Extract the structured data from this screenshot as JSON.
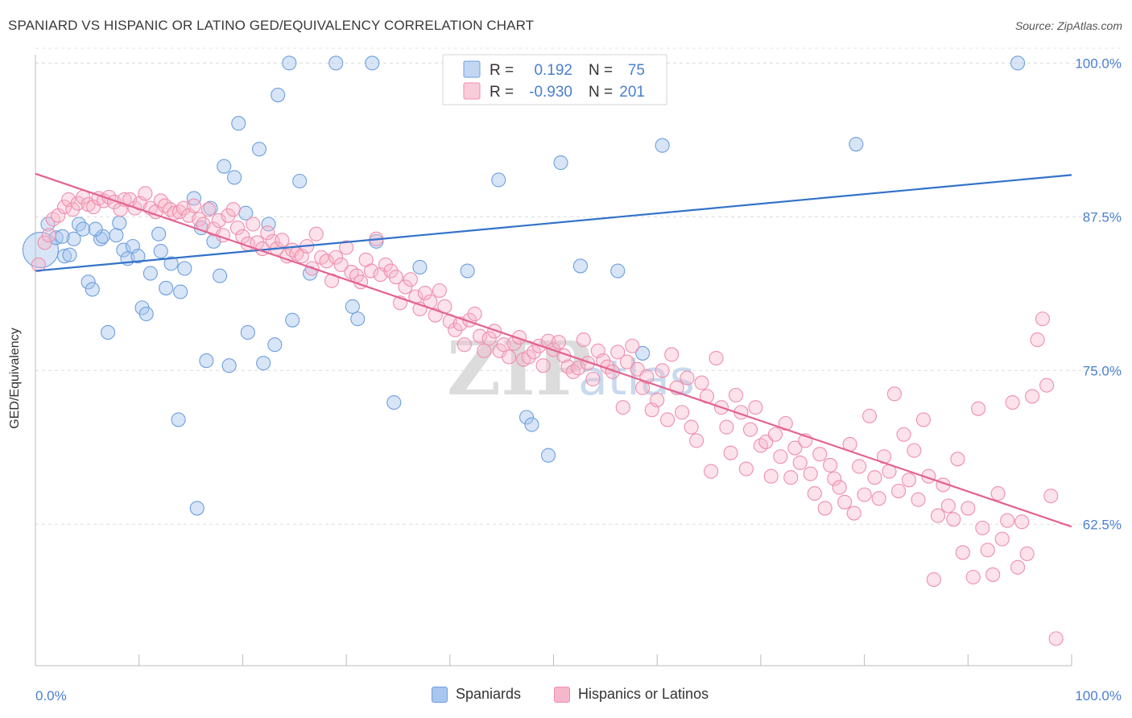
{
  "title": "SPANIARD VS HISPANIC OR LATINO GED/EQUIVALENCY CORRELATION CHART",
  "source": "Source: ZipAtlas.com",
  "colors": {
    "blue_fill": "#a9c6ee",
    "blue_stroke": "#6d9fdd",
    "blue_line": "#3272c9",
    "pink_fill": "#f7b7cb",
    "pink_stroke": "#ee8eae",
    "pink_line": "#e4628f",
    "tick_label": "#4a7fd0"
  },
  "stats_legend": {
    "r_label": "R =",
    "n_label": "N =",
    "rows": [
      {
        "series": "Spaniards",
        "r": "0.192",
        "n": "75"
      },
      {
        "series": "Hispanics or Latinos",
        "r": "-0.930",
        "n": "201"
      }
    ]
  },
  "bottom_legend": [
    "Spaniards",
    "Hispanics or Latinos"
  ],
  "watermark": "ZIPatlas",
  "chart_data": {
    "type": "scatter",
    "title": "SPANIARD VS HISPANIC OR LATINO GED/EQUIVALENCY CORRELATION CHART",
    "xlabel": "",
    "ylabel": "GED/Equivalency",
    "xlim": [
      0,
      100
    ],
    "ylim": [
      51,
      101.2
    ],
    "x_tick_labels": [
      "0.0%",
      "100.0%"
    ],
    "y_ticks": [
      62.5,
      75.0,
      87.5,
      100.0
    ],
    "y_tick_labels": [
      "62.5%",
      "75.0%",
      "87.5%",
      "100.0%"
    ],
    "grid": true,
    "legend_position": "top-center",
    "series": [
      {
        "name": "Spaniards",
        "trend": {
          "x": [
            0,
            100
          ],
          "y": [
            83.1,
            90.9
          ]
        },
        "points": [
          [
            0.5,
            84.8
          ],
          [
            1.2,
            86.9
          ],
          [
            2,
            85.8
          ],
          [
            2.8,
            84.3
          ],
          [
            3.3,
            84.4
          ],
          [
            3.7,
            85.7
          ],
          [
            4.2,
            86.9
          ],
          [
            4.6,
            86.5
          ],
          [
            5.1,
            82.2
          ],
          [
            5.5,
            81.6
          ],
          [
            6.3,
            85.7
          ],
          [
            6.5,
            85.9
          ],
          [
            7,
            78.1
          ],
          [
            7.8,
            86.0
          ],
          [
            8.1,
            87.0
          ],
          [
            8.5,
            84.8
          ],
          [
            8.9,
            84.1
          ],
          [
            9.4,
            85.1
          ],
          [
            9.9,
            84.3
          ],
          [
            10.3,
            80.1
          ],
          [
            10.7,
            79.6
          ],
          [
            11.1,
            82.9
          ],
          [
            11.9,
            86.1
          ],
          [
            12.1,
            84.7
          ],
          [
            12.6,
            81.7
          ],
          [
            13.1,
            83.7
          ],
          [
            13.8,
            71.0
          ],
          [
            14,
            81.4
          ],
          [
            14.4,
            83.3
          ],
          [
            15.3,
            89.0
          ],
          [
            15.6,
            63.8
          ],
          [
            16,
            86.6
          ],
          [
            16.5,
            75.8
          ],
          [
            16.9,
            88.2
          ],
          [
            17.2,
            85.5
          ],
          [
            17.8,
            82.7
          ],
          [
            18.2,
            91.6
          ],
          [
            18.7,
            75.4
          ],
          [
            19.2,
            90.7
          ],
          [
            19.6,
            95.1
          ],
          [
            20.3,
            87.8
          ],
          [
            20.5,
            78.1
          ],
          [
            21.6,
            93.0
          ],
          [
            22,
            75.6
          ],
          [
            22.5,
            86.9
          ],
          [
            23.1,
            77.1
          ],
          [
            23.4,
            97.4
          ],
          [
            24.5,
            100.0
          ],
          [
            24.8,
            79.1
          ],
          [
            25.5,
            90.4
          ],
          [
            26.5,
            82.9
          ],
          [
            29,
            100.0
          ],
          [
            30.6,
            80.2
          ],
          [
            31.1,
            79.2
          ],
          [
            32.5,
            100.0
          ],
          [
            32.9,
            85.5
          ],
          [
            34.6,
            72.4
          ],
          [
            37.1,
            83.4
          ],
          [
            40.5,
            100.0
          ],
          [
            41.7,
            83.1
          ],
          [
            44.1,
            99.0
          ],
          [
            44.7,
            90.5
          ],
          [
            47.4,
            71.2
          ],
          [
            47.9,
            70.6
          ],
          [
            49.5,
            68.1
          ],
          [
            50.4,
            100.0
          ],
          [
            50.7,
            91.9
          ],
          [
            52.6,
            83.5
          ],
          [
            56.2,
            83.1
          ],
          [
            58.6,
            76.4
          ],
          [
            60.5,
            93.3
          ],
          [
            79.2,
            93.4
          ],
          [
            94.8,
            100.0
          ],
          [
            5.8,
            86.5
          ],
          [
            2.6,
            85.9
          ]
        ]
      },
      {
        "name": "Hispanics or Latinos",
        "trend": {
          "x": [
            0,
            100
          ],
          "y": [
            91.0,
            62.3
          ]
        },
        "points": [
          [
            0.3,
            83.6
          ],
          [
            0.9,
            85.4
          ],
          [
            1.3,
            86.0
          ],
          [
            1.7,
            87.3
          ],
          [
            2.2,
            87.6
          ],
          [
            2.8,
            88.3
          ],
          [
            3.2,
            88.9
          ],
          [
            3.6,
            88.1
          ],
          [
            4.1,
            88.6
          ],
          [
            4.6,
            89.1
          ],
          [
            5.1,
            88.5
          ],
          [
            5.6,
            88.3
          ],
          [
            6.1,
            89.0
          ],
          [
            6.6,
            88.8
          ],
          [
            7.1,
            89.1
          ],
          [
            7.6,
            88.7
          ],
          [
            8.2,
            88.1
          ],
          [
            8.6,
            88.9
          ],
          [
            9.1,
            88.9
          ],
          [
            9.6,
            88.2
          ],
          [
            10.1,
            88.6
          ],
          [
            10.6,
            89.4
          ],
          [
            11.1,
            88.2
          ],
          [
            11.6,
            87.9
          ],
          [
            12.1,
            88.8
          ],
          [
            12.5,
            88.4
          ],
          [
            13,
            88.1
          ],
          [
            13.4,
            87.8
          ],
          [
            13.9,
            87.9
          ],
          [
            14.3,
            88.2
          ],
          [
            14.8,
            87.6
          ],
          [
            15.3,
            88.4
          ],
          [
            15.8,
            87.3
          ],
          [
            16.2,
            86.9
          ],
          [
            16.7,
            88.1
          ],
          [
            17.2,
            86.5
          ],
          [
            17.7,
            87.2
          ],
          [
            18.1,
            86.0
          ],
          [
            18.6,
            87.6
          ],
          [
            19.1,
            88.1
          ],
          [
            19.5,
            86.6
          ],
          [
            20,
            85.9
          ],
          [
            20.5,
            85.3
          ],
          [
            21,
            86.9
          ],
          [
            21.4,
            85.4
          ],
          [
            21.9,
            84.9
          ],
          [
            22.4,
            86.2
          ],
          [
            22.9,
            85.5
          ],
          [
            23.3,
            84.9
          ],
          [
            23.8,
            85.6
          ],
          [
            24.3,
            84.3
          ],
          [
            24.8,
            84.8
          ],
          [
            25.2,
            84.5
          ],
          [
            25.7,
            84.3
          ],
          [
            26.2,
            85.1
          ],
          [
            26.7,
            83.3
          ],
          [
            27.1,
            86.1
          ],
          [
            27.6,
            84.2
          ],
          [
            28.1,
            83.9
          ],
          [
            28.6,
            82.3
          ],
          [
            29,
            84.2
          ],
          [
            29.5,
            83.6
          ],
          [
            30,
            85.0
          ],
          [
            30.5,
            83.0
          ],
          [
            31,
            82.7
          ],
          [
            31.4,
            82.2
          ],
          [
            31.9,
            84.0
          ],
          [
            32.4,
            83.1
          ],
          [
            32.9,
            85.7
          ],
          [
            33.3,
            82.8
          ],
          [
            33.8,
            83.6
          ],
          [
            34.3,
            83.1
          ],
          [
            34.8,
            82.6
          ],
          [
            35.2,
            80.5
          ],
          [
            35.7,
            81.8
          ],
          [
            36.2,
            82.4
          ],
          [
            36.7,
            81.0
          ],
          [
            37.1,
            80.0
          ],
          [
            37.6,
            81.3
          ],
          [
            38.1,
            80.6
          ],
          [
            38.6,
            79.5
          ],
          [
            39,
            81.5
          ],
          [
            39.5,
            80.2
          ],
          [
            40,
            79.0
          ],
          [
            40.5,
            78.3
          ],
          [
            41,
            78.8
          ],
          [
            41.4,
            77.1
          ],
          [
            41.9,
            79.1
          ],
          [
            42.4,
            79.6
          ],
          [
            42.9,
            77.8
          ],
          [
            43.3,
            76.6
          ],
          [
            43.8,
            77.6
          ],
          [
            44.3,
            78.2
          ],
          [
            44.8,
            76.6
          ],
          [
            45.2,
            77.1
          ],
          [
            45.7,
            76.1
          ],
          [
            46.2,
            77.2
          ],
          [
            46.7,
            77.7
          ],
          [
            47.1,
            75.9
          ],
          [
            47.6,
            76.1
          ],
          [
            48.1,
            76.5
          ],
          [
            48.6,
            77.0
          ],
          [
            49,
            75.4
          ],
          [
            49.5,
            77.4
          ],
          [
            50,
            76.7
          ],
          [
            50.5,
            77.3
          ],
          [
            51,
            76.2
          ],
          [
            51.4,
            75.3
          ],
          [
            51.9,
            74.9
          ],
          [
            52.4,
            75.2
          ],
          [
            52.9,
            77.5
          ],
          [
            53.3,
            75.6
          ],
          [
            53.8,
            74.3
          ],
          [
            54.3,
            76.6
          ],
          [
            54.8,
            75.8
          ],
          [
            55.2,
            75.3
          ],
          [
            55.7,
            74.9
          ],
          [
            56.2,
            76.5
          ],
          [
            56.7,
            72.0
          ],
          [
            57.1,
            75.7
          ],
          [
            57.6,
            77.0
          ],
          [
            58.1,
            75.1
          ],
          [
            58.6,
            73.6
          ],
          [
            59,
            74.5
          ],
          [
            59.5,
            71.8
          ],
          [
            60,
            72.6
          ],
          [
            60.5,
            75.0
          ],
          [
            61,
            71.0
          ],
          [
            61.4,
            76.3
          ],
          [
            61.9,
            73.6
          ],
          [
            62.4,
            71.6
          ],
          [
            62.9,
            74.4
          ],
          [
            63.3,
            70.4
          ],
          [
            63.8,
            69.3
          ],
          [
            64.3,
            74.0
          ],
          [
            64.8,
            72.9
          ],
          [
            65.2,
            66.8
          ],
          [
            65.7,
            76.0
          ],
          [
            66.2,
            72.0
          ],
          [
            66.7,
            70.4
          ],
          [
            67.1,
            68.3
          ],
          [
            67.6,
            73.0
          ],
          [
            68.1,
            71.6
          ],
          [
            68.6,
            67.0
          ],
          [
            69,
            70.2
          ],
          [
            69.5,
            72.0
          ],
          [
            70,
            68.9
          ],
          [
            70.5,
            69.2
          ],
          [
            71,
            66.4
          ],
          [
            71.4,
            69.8
          ],
          [
            71.9,
            68.0
          ],
          [
            72.4,
            70.7
          ],
          [
            72.9,
            66.3
          ],
          [
            73.3,
            68.7
          ],
          [
            73.8,
            67.5
          ],
          [
            74.3,
            69.3
          ],
          [
            74.8,
            66.6
          ],
          [
            75.2,
            65.0
          ],
          [
            75.7,
            68.2
          ],
          [
            76.2,
            63.8
          ],
          [
            76.7,
            67.3
          ],
          [
            77.1,
            66.2
          ],
          [
            77.6,
            65.5
          ],
          [
            78.1,
            64.3
          ],
          [
            78.6,
            69.0
          ],
          [
            79,
            63.4
          ],
          [
            79.5,
            67.2
          ],
          [
            80,
            64.9
          ],
          [
            80.5,
            71.3
          ],
          [
            81,
            66.3
          ],
          [
            81.4,
            64.6
          ],
          [
            81.9,
            68.0
          ],
          [
            82.4,
            66.8
          ],
          [
            82.9,
            73.1
          ],
          [
            83.3,
            65.2
          ],
          [
            83.8,
            69.8
          ],
          [
            84.3,
            66.1
          ],
          [
            84.8,
            68.5
          ],
          [
            85.2,
            64.5
          ],
          [
            85.7,
            71.0
          ],
          [
            86.2,
            66.4
          ],
          [
            86.7,
            58.0
          ],
          [
            87.1,
            63.2
          ],
          [
            87.6,
            65.7
          ],
          [
            88.1,
            64.0
          ],
          [
            88.6,
            62.9
          ],
          [
            89,
            67.8
          ],
          [
            89.5,
            60.2
          ],
          [
            90,
            63.8
          ],
          [
            90.5,
            58.2
          ],
          [
            91,
            71.9
          ],
          [
            91.4,
            62.2
          ],
          [
            91.9,
            60.4
          ],
          [
            92.4,
            58.4
          ],
          [
            92.9,
            65.0
          ],
          [
            93.3,
            61.3
          ],
          [
            93.8,
            62.8
          ],
          [
            94.3,
            72.4
          ],
          [
            94.8,
            59.0
          ],
          [
            95.2,
            62.7
          ],
          [
            95.7,
            60.1
          ],
          [
            96.2,
            72.9
          ],
          [
            96.7,
            77.5
          ],
          [
            97.2,
            79.2
          ],
          [
            97.6,
            73.8
          ],
          [
            98,
            64.8
          ],
          [
            98.5,
            53.2
          ]
        ]
      }
    ]
  }
}
